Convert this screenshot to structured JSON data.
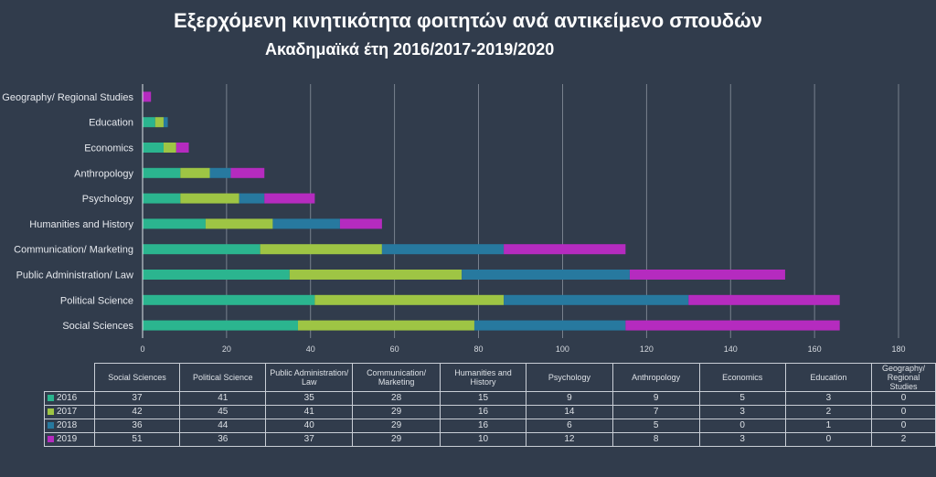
{
  "chart_data": {
    "type": "bar",
    "orientation": "horizontal",
    "stacked": true,
    "title": "Εξερχόμενη κινητικότητα φοιτητών ανά αντικείμενο σπουδών",
    "subtitle": "Ακαδημαϊκά έτη 2016/2017-2019/2020",
    "xlabel": "",
    "ylabel": "",
    "xlim": [
      0,
      180
    ],
    "x_ticks": [
      0,
      20,
      40,
      60,
      80,
      100,
      120,
      140,
      160,
      180
    ],
    "grid": true,
    "legend": "table-below",
    "categories": [
      "Social Sciences",
      "Political Science",
      "Public Administration/ Law",
      "Communication/ Marketing",
      "Humanities and History",
      "Psychology",
      "Anthropology",
      "Economics",
      "Education",
      "Geography/ Regional Studies"
    ],
    "table_headers": [
      "Social Sciences",
      "Political Science",
      "Public Administration/ Law",
      "Communication/ Marketing",
      "Humanities and History",
      "Psychology",
      "Anthropology",
      "Economics",
      "Education",
      "Geography/ Regional Studies"
    ],
    "series": [
      {
        "name": "2016",
        "color": "#2bb58f",
        "values": [
          37,
          41,
          35,
          28,
          15,
          9,
          9,
          5,
          3,
          0
        ]
      },
      {
        "name": "2017",
        "color": "#9ec544",
        "values": [
          42,
          45,
          41,
          29,
          16,
          14,
          7,
          3,
          2,
          0
        ]
      },
      {
        "name": "2018",
        "color": "#27799f",
        "values": [
          36,
          44,
          40,
          29,
          16,
          6,
          5,
          0,
          1,
          0
        ]
      },
      {
        "name": "2019",
        "color": "#b52bbf",
        "values": [
          51,
          36,
          37,
          29,
          10,
          12,
          8,
          3,
          0,
          2
        ]
      }
    ]
  },
  "colors": {
    "background": "#313c4c",
    "gridline": "#8a929e",
    "text": "#e6e9ee"
  }
}
